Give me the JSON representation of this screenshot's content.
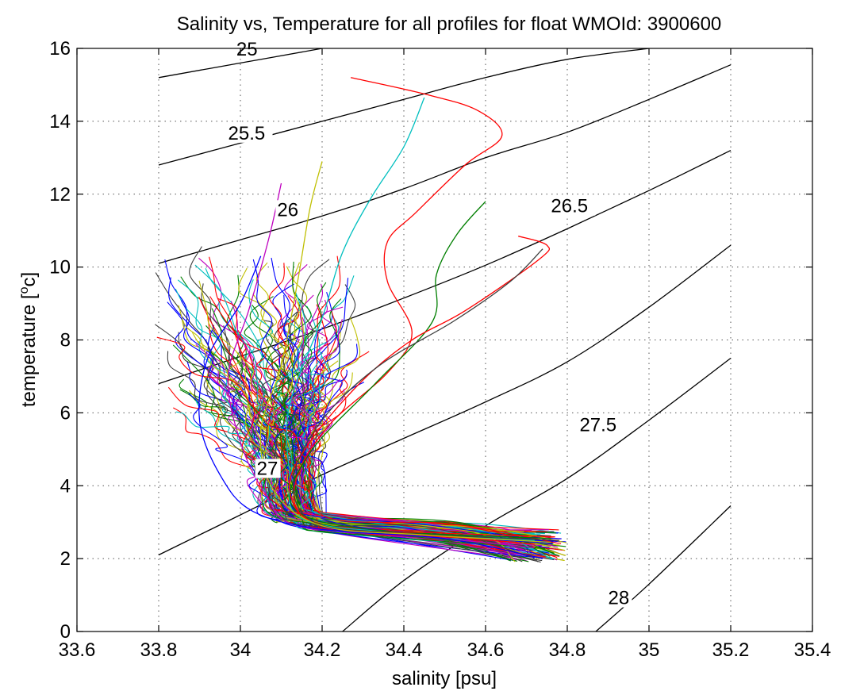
{
  "chart_data": {
    "type": "line",
    "title": "Salinity vs, Temperature for all profiles for float WMOId: 3900600",
    "xlabel": "salinity [psu]",
    "ylabel_text": "temperature [",
    "ylabel_sup": "o",
    "ylabel_end": "c]",
    "xlim": [
      33.6,
      35.4
    ],
    "ylim": [
      0,
      16
    ],
    "xticks": [
      33.6,
      33.8,
      34,
      34.2,
      34.4,
      34.6,
      34.8,
      35,
      35.2,
      35.4
    ],
    "xtick_labels": [
      "33.6",
      "33.8",
      "34",
      "34.2",
      "34.4",
      "34.6",
      "34.8",
      "35",
      "35.2",
      "35.4"
    ],
    "yticks": [
      0,
      2,
      4,
      6,
      8,
      10,
      12,
      14,
      16
    ],
    "ytick_labels": [
      "0",
      "2",
      "4",
      "6",
      "8",
      "10",
      "12",
      "14",
      "16"
    ],
    "grid": true,
    "density_contours": [
      {
        "label": "25",
        "points": [
          [
            33.8,
            15.2
          ],
          [
            34.0,
            15.6
          ],
          [
            34.2,
            16.0
          ]
        ],
        "label_at": [
          33.99,
          15.8
        ]
      },
      {
        "label": "25.5",
        "points": [
          [
            33.8,
            12.8
          ],
          [
            34.0,
            13.4
          ],
          [
            34.2,
            14.0
          ],
          [
            34.4,
            14.6
          ],
          [
            34.6,
            15.2
          ],
          [
            34.8,
            15.7
          ],
          [
            35.0,
            16.0
          ]
        ],
        "label_at": [
          33.97,
          13.5
        ]
      },
      {
        "label": "26",
        "points": [
          [
            33.8,
            10.1
          ],
          [
            34.0,
            10.75
          ],
          [
            34.2,
            11.4
          ],
          [
            34.4,
            12.15
          ],
          [
            34.6,
            13.0
          ],
          [
            34.8,
            13.7
          ],
          [
            35.0,
            14.6
          ],
          [
            35.2,
            15.55
          ]
        ],
        "label_at": [
          34.09,
          11.4
        ]
      },
      {
        "label": "26.5",
        "points": [
          [
            33.8,
            6.8
          ],
          [
            34.0,
            7.55
          ],
          [
            34.2,
            8.3
          ],
          [
            34.4,
            9.15
          ],
          [
            34.6,
            10.05
          ],
          [
            34.8,
            11.05
          ],
          [
            35.0,
            12.1
          ],
          [
            35.2,
            13.2
          ]
        ],
        "label_at": [
          34.76,
          11.5
        ]
      },
      {
        "label": "27",
        "points": [
          [
            33.8,
            2.1
          ],
          [
            34.0,
            3.2
          ],
          [
            34.2,
            4.3
          ],
          [
            34.4,
            5.3
          ],
          [
            34.6,
            6.3
          ],
          [
            34.8,
            7.4
          ],
          [
            35.0,
            8.9
          ],
          [
            35.2,
            10.6
          ]
        ],
        "label_at": [
          34.04,
          4.3
        ]
      },
      {
        "label": "27.5",
        "points": [
          [
            34.25,
            0.0
          ],
          [
            34.4,
            1.4
          ],
          [
            34.6,
            2.9
          ],
          [
            34.8,
            4.2
          ],
          [
            35.0,
            5.8
          ],
          [
            35.2,
            7.5
          ]
        ],
        "label_at": [
          34.83,
          5.5
        ]
      },
      {
        "label": "28",
        "points": [
          [
            34.87,
            0.0
          ],
          [
            35.0,
            1.3
          ],
          [
            35.2,
            3.45
          ]
        ],
        "label_at": [
          34.9,
          0.75
        ]
      }
    ],
    "highlight_series": [
      {
        "color": "#ff0000",
        "points": [
          [
            34.27,
            15.2
          ],
          [
            34.45,
            14.75
          ],
          [
            34.58,
            14.3
          ],
          [
            34.64,
            13.6
          ],
          [
            34.55,
            12.8
          ],
          [
            34.43,
            11.5
          ],
          [
            34.36,
            10.7
          ],
          [
            34.36,
            9.6
          ],
          [
            34.42,
            8.2
          ],
          [
            34.36,
            7.1
          ],
          [
            34.22,
            5.7
          ],
          [
            34.14,
            4.3
          ],
          [
            34.15,
            3.2
          ],
          [
            34.3,
            2.7
          ],
          [
            34.5,
            2.6
          ],
          [
            34.72,
            2.4
          ]
        ]
      },
      {
        "color": "#00bfbf",
        "points": [
          [
            34.45,
            14.65
          ],
          [
            34.4,
            13.3
          ],
          [
            34.32,
            11.9
          ],
          [
            34.25,
            10.4
          ],
          [
            34.2,
            8.6
          ],
          [
            34.12,
            6.2
          ],
          [
            34.12,
            4.4
          ],
          [
            34.15,
            3.1
          ],
          [
            34.4,
            2.7
          ],
          [
            34.72,
            2.5
          ]
        ]
      },
      {
        "color": "#007f00",
        "points": [
          [
            34.6,
            11.8
          ],
          [
            34.53,
            10.9
          ],
          [
            34.48,
            9.8
          ],
          [
            34.47,
            8.5
          ],
          [
            34.33,
            6.8
          ],
          [
            34.17,
            4.9
          ],
          [
            34.13,
            3.4
          ],
          [
            34.32,
            2.8
          ],
          [
            34.76,
            2.55
          ]
        ]
      },
      {
        "color": "#ff0000",
        "points": [
          [
            34.68,
            10.85
          ],
          [
            34.75,
            10.6
          ],
          [
            34.73,
            10.2
          ],
          [
            34.55,
            8.8
          ],
          [
            34.42,
            8.0
          ],
          [
            34.3,
            6.9
          ],
          [
            34.17,
            5.2
          ],
          [
            34.12,
            3.9
          ],
          [
            34.2,
            2.9
          ],
          [
            34.5,
            2.7
          ],
          [
            34.77,
            2.6
          ]
        ]
      },
      {
        "color": "#3f3f3f",
        "points": [
          [
            34.74,
            10.5
          ],
          [
            34.66,
            9.6
          ],
          [
            34.52,
            8.5
          ],
          [
            34.34,
            7.3
          ],
          [
            34.2,
            5.8
          ],
          [
            34.13,
            4.2
          ],
          [
            34.18,
            3.0
          ],
          [
            34.4,
            2.7
          ],
          [
            34.78,
            2.5
          ]
        ]
      },
      {
        "color": "#bfbf00",
        "points": [
          [
            34.2,
            12.9
          ],
          [
            34.17,
            11.6
          ],
          [
            34.14,
            9.6
          ],
          [
            34.1,
            7.3
          ],
          [
            34.05,
            5.5
          ],
          [
            34.08,
            3.9
          ],
          [
            34.2,
            2.9
          ],
          [
            34.45,
            2.65
          ],
          [
            34.76,
            2.45
          ]
        ]
      },
      {
        "color": "#bf00bf",
        "points": [
          [
            34.1,
            12.3
          ],
          [
            34.07,
            10.8
          ],
          [
            34.02,
            8.8
          ],
          [
            33.97,
            7.0
          ],
          [
            34.0,
            5.2
          ],
          [
            34.06,
            3.8
          ],
          [
            34.14,
            2.9
          ],
          [
            34.45,
            2.6
          ],
          [
            34.72,
            2.3
          ]
        ]
      },
      {
        "color": "#0000ff",
        "points": [
          [
            34.05,
            10.3
          ],
          [
            34.0,
            9.0
          ],
          [
            33.92,
            7.5
          ],
          [
            33.9,
            5.8
          ],
          [
            33.95,
            4.3
          ],
          [
            34.03,
            3.3
          ],
          [
            34.2,
            2.8
          ],
          [
            34.5,
            2.55
          ],
          [
            34.74,
            2.0
          ]
        ]
      }
    ],
    "bundle_colors": [
      "#0000ff",
      "#007f00",
      "#ff0000",
      "#00bfbf",
      "#bf00bf",
      "#bfbf00",
      "#3f3f3f"
    ]
  }
}
